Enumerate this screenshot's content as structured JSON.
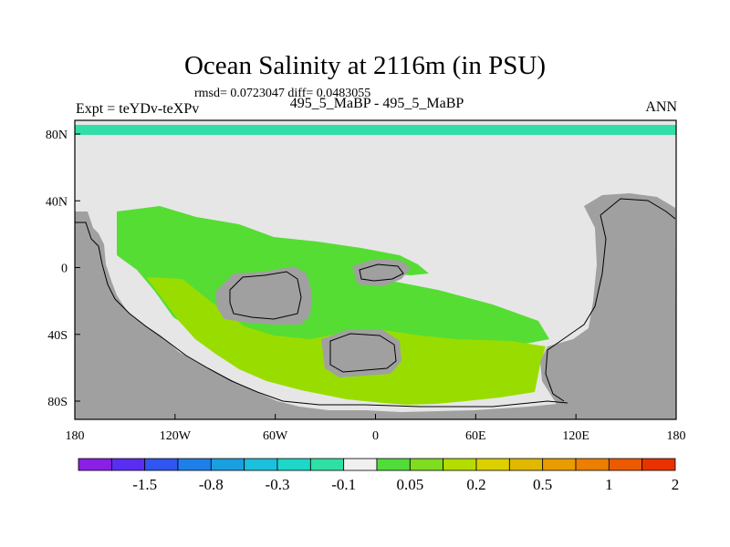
{
  "header": {
    "title": "Ocean Salinity at 2116m (in PSU)",
    "stats": "rmsd= 0.0723047 diff= 0.0483055",
    "left_label": "Expt = teYDv-teXPv",
    "center_label": "495_5_MaBP - 495_5_MaBP",
    "right_label": "ANN"
  },
  "map": {
    "x_ticks": [
      {
        "value": -180,
        "label": "180"
      },
      {
        "value": -120,
        "label": "120W"
      },
      {
        "value": -60,
        "label": "60W"
      },
      {
        "value": 0,
        "label": "0"
      },
      {
        "value": 60,
        "label": "60E"
      },
      {
        "value": 120,
        "label": "120E"
      },
      {
        "value": 180,
        "label": "180"
      }
    ],
    "y_ticks": [
      {
        "value": 80,
        "label": "80N"
      },
      {
        "value": 40,
        "label": "40N"
      },
      {
        "value": 0,
        "label": "0"
      },
      {
        "value": -40,
        "label": "40S"
      },
      {
        "value": -80,
        "label": "80S"
      }
    ],
    "colors": {
      "land": "#a0a0a0",
      "no_data": "#e6e6e6",
      "north_band": "#33ddaa",
      "green": "#55dd33",
      "yellow_green": "#99dd00"
    }
  },
  "colorbar": {
    "colors": [
      "#8a1fe6",
      "#5a2ef0",
      "#3055f0",
      "#1e7fe8",
      "#1aa0e0",
      "#1ac0dc",
      "#1dd7c8",
      "#2ee0a5",
      "#f0f0f0",
      "#50dd3a",
      "#80dc1e",
      "#b4dc00",
      "#dcd000",
      "#e0b800",
      "#e89c00",
      "#ec7e00",
      "#ec5a00",
      "#e83200"
    ],
    "labels": [
      "-1.5",
      "-0.8",
      "-0.3",
      "-0.1",
      "0.05",
      "0.2",
      "0.5",
      "1",
      "2"
    ]
  }
}
